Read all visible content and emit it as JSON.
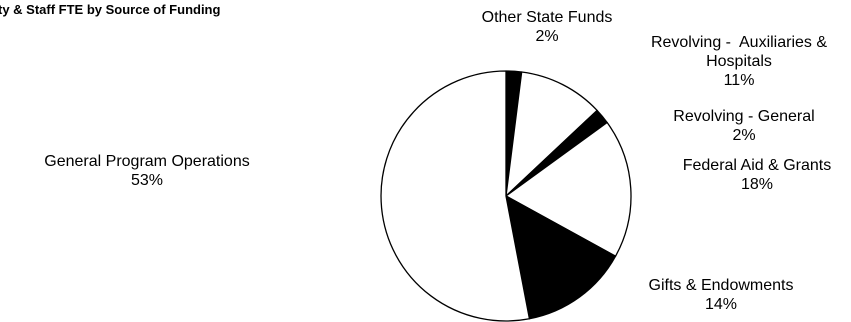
{
  "chart_data": {
    "type": "pie",
    "title": "ty & Staff FTE by Source of Funding",
    "colors": {
      "white": "#ffffff",
      "black": "#000000"
    },
    "slices": [
      {
        "label": "Other State Funds",
        "value": 2,
        "value_label": "2%",
        "fill": "#000000"
      },
      {
        "label": "Revolving - Auxiliaries & Hospitals",
        "label_lines": [
          "Revolving -  Auxiliaries &",
          "Hospitals"
        ],
        "value": 11,
        "value_label": "11%",
        "fill": "#ffffff"
      },
      {
        "label": "Revolving - General",
        "value": 2,
        "value_label": "2%",
        "fill": "#000000"
      },
      {
        "label": "Federal Aid & Grants",
        "value": 18,
        "value_label": "18%",
        "fill": "#ffffff"
      },
      {
        "label": "Gifts & Endowments",
        "value": 14,
        "value_label": "14%",
        "fill": "#000000"
      },
      {
        "label": "General Program Operations",
        "value": 53,
        "value_label": "53%",
        "fill": "#ffffff"
      }
    ]
  }
}
